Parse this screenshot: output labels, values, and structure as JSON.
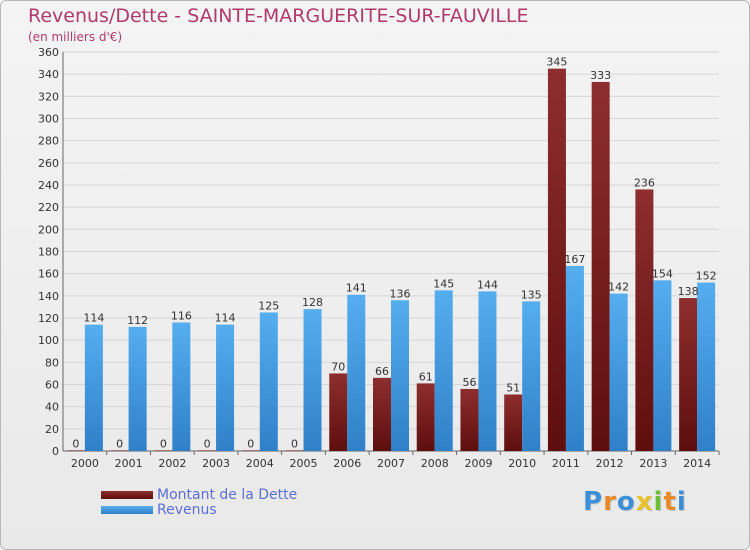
{
  "header": {
    "title": "Revenus/Dette - SAINTE-MARGUERITE-SUR-FAUVILLE",
    "subtitle": "(en milliers d'€)"
  },
  "legend": {
    "items": [
      {
        "label": "Montant de la Dette",
        "color": "#7a1c1c"
      },
      {
        "label": "Revenus",
        "color": "#4aa3e6"
      }
    ]
  },
  "brand": {
    "logo_text": "Proxiti"
  },
  "chart_data": {
    "type": "bar",
    "categories": [
      "2000",
      "2001",
      "2002",
      "2003",
      "2004",
      "2005",
      "2006",
      "2007",
      "2008",
      "2009",
      "2010",
      "2011",
      "2012",
      "2013",
      "2014"
    ],
    "series": [
      {
        "name": "Montant de la Dette",
        "color": "#7a1c1c",
        "values": [
          0,
          0,
          0,
          0,
          0,
          0,
          70,
          66,
          61,
          56,
          51,
          345,
          333,
          236,
          138
        ]
      },
      {
        "name": "Revenus",
        "color": "#4aa3e6",
        "values": [
          114,
          112,
          116,
          114,
          125,
          128,
          141,
          136,
          145,
          144,
          135,
          167,
          142,
          154,
          152
        ]
      }
    ],
    "ylim": [
      0,
      360
    ],
    "yticks": [
      0,
      20,
      40,
      60,
      80,
      100,
      120,
      140,
      160,
      180,
      200,
      220,
      240,
      260,
      280,
      300,
      320,
      340,
      360
    ],
    "grid": true,
    "legend_position": "bottom-left",
    "xlabel": "",
    "ylabel": ""
  }
}
